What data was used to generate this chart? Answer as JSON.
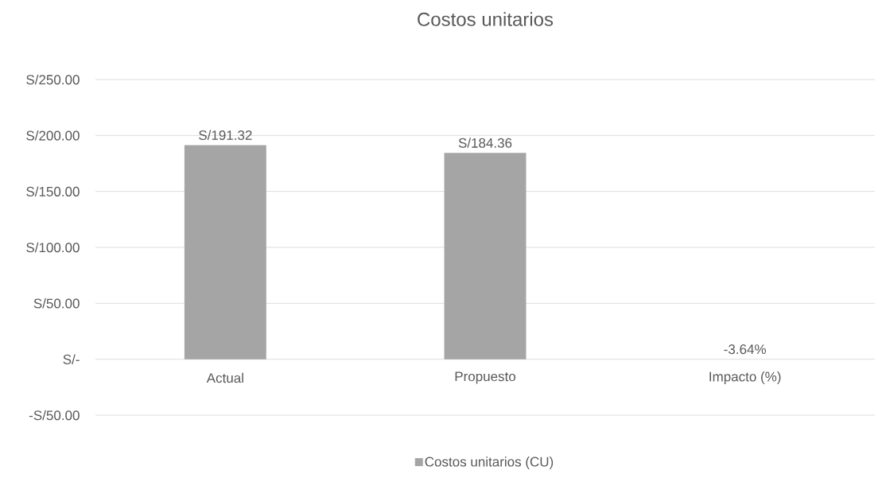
{
  "chart_data": {
    "type": "bar",
    "title": "Costos unitarios",
    "categories": [
      "Actual",
      "Propuesto",
      "Impacto (%)"
    ],
    "series": [
      {
        "name": "Costos unitarios (CU)",
        "color": "#a5a5a5",
        "values": [
          191.32,
          184.36,
          -0.0364
        ],
        "value_labels": [
          "S/191.32",
          "S/184.36",
          "-3.64%"
        ]
      }
    ],
    "ylim": [
      -50,
      250
    ],
    "yticks": [
      {
        "value": -50,
        "label": "-S/50.00"
      },
      {
        "value": 0,
        "label": "S/-"
      },
      {
        "value": 50,
        "label": "S/50.00"
      },
      {
        "value": 100,
        "label": "S/100.00"
      },
      {
        "value": 150,
        "label": "S/150.00"
      },
      {
        "value": 200,
        "label": "S/200.00"
      },
      {
        "value": 250,
        "label": "S/250.00"
      }
    ],
    "grid": "y",
    "legend": "bottom"
  }
}
